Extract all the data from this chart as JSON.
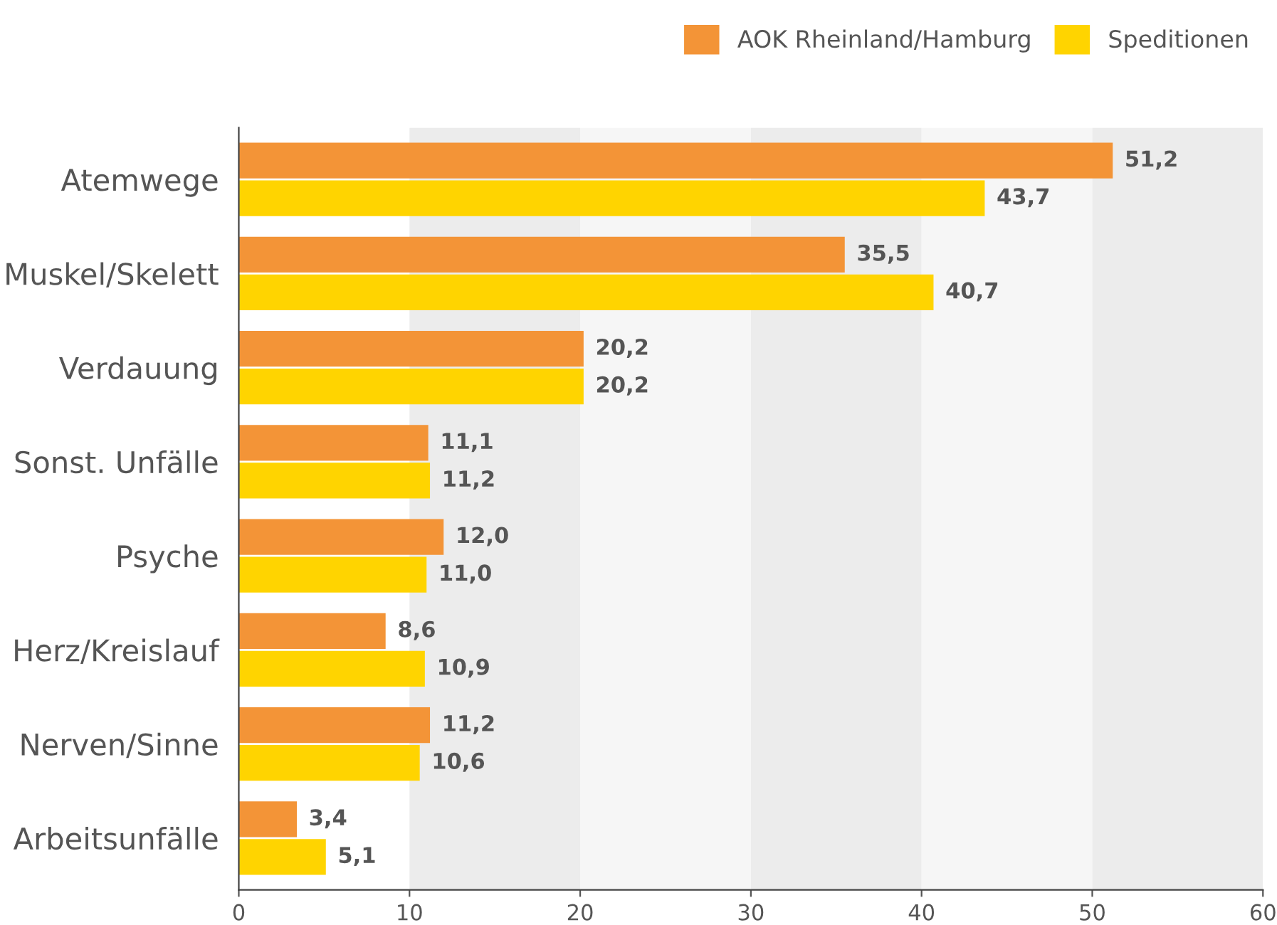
{
  "chart_data": {
    "type": "bar",
    "orientation": "horizontal",
    "categories": [
      "Atemwege",
      "Muskel/Skelett",
      "Verdauung",
      "Sonst. Unfälle",
      "Psyche",
      "Herz/Kreislauf",
      "Nerven/Sinne",
      "Arbeitsunfälle"
    ],
    "series": [
      {
        "name": "AOK Rheinland/Hamburg",
        "color": "#f39437",
        "values": [
          51.2,
          35.5,
          20.2,
          11.1,
          12.0,
          8.6,
          11.2,
          3.4
        ],
        "value_labels": [
          "51,2",
          "35,5",
          "20,2",
          "11,1",
          "12,0",
          "8,6",
          "11,2",
          "3,4"
        ]
      },
      {
        "name": "Speditionen",
        "color": "#ffd400",
        "values": [
          43.7,
          40.7,
          20.2,
          11.2,
          11.0,
          10.9,
          10.6,
          5.1
        ],
        "value_labels": [
          "43,7",
          "40,7",
          "20,2",
          "11,2",
          "11,0",
          "10,9",
          "10,6",
          "5,1"
        ]
      }
    ],
    "xlim": [
      0,
      60
    ],
    "xticks": [
      0,
      10,
      20,
      30,
      40,
      50,
      60
    ],
    "bands": [
      {
        "axis": "x",
        "from": 10,
        "to": 20,
        "color": "#ececec"
      },
      {
        "axis": "x",
        "from": 20,
        "to": 30,
        "color": "#f6f6f6"
      },
      {
        "axis": "x",
        "from": 30,
        "to": 40,
        "color": "#ececec"
      },
      {
        "axis": "x",
        "from": 40,
        "to": 50,
        "color": "#f6f6f6"
      },
      {
        "axis": "x",
        "from": 50,
        "to": 60,
        "color": "#ececec"
      }
    ],
    "grid": false,
    "legend": "top right"
  }
}
